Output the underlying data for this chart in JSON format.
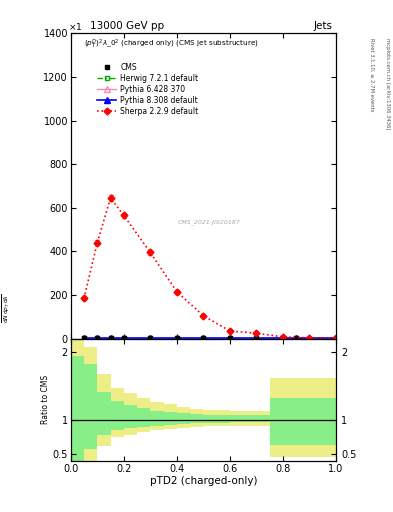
{
  "title_top": "13000 GeV pp",
  "title_right": "Jets",
  "plot_label": "$(p_T^D)^2\\lambda\\_0^2$ (charged only) (CMS jet substructure)",
  "watermark": "CMS_2021-JI920187",
  "ylabel_ratio": "Ratio to CMS",
  "xlabel": "pTD2 (charged-only)",
  "right_label_top": "Rivet 3.1.10, ≥ 2.7M events",
  "right_label_bot": "mcplots.cern.ch [arXiv:1306.3436]",
  "sherpa_x": [
    0.05,
    0.1,
    0.15,
    0.2,
    0.3,
    0.4,
    0.5,
    0.6,
    0.7,
    0.8,
    0.9,
    1.0
  ],
  "sherpa_y": [
    185,
    440,
    645,
    565,
    395,
    215,
    105,
    35,
    25,
    8,
    4,
    2
  ],
  "sherpa_ey": [
    10,
    12,
    15,
    13,
    10,
    8,
    6,
    4,
    3,
    2,
    1,
    1
  ],
  "cms_x": [
    0.05,
    0.1,
    0.15,
    0.2,
    0.3,
    0.4,
    0.5,
    0.6,
    0.7,
    0.85,
    1.0
  ],
  "cms_y": [
    2,
    2,
    2,
    2,
    2,
    2,
    2,
    2,
    2,
    2,
    2
  ],
  "herwig_x": [
    0.05,
    0.1,
    0.15,
    0.2,
    0.3,
    0.4,
    0.5,
    0.6,
    0.7,
    0.85,
    1.0
  ],
  "herwig_y": [
    2,
    2,
    2,
    2,
    2,
    2,
    2,
    2,
    2,
    2,
    2
  ],
  "pythia6_x": [
    0.05,
    0.1,
    0.15,
    0.2,
    0.3,
    0.4,
    0.5,
    0.6,
    0.7,
    0.85,
    1.0
  ],
  "pythia6_y": [
    2,
    2,
    2,
    2,
    2,
    2,
    2,
    2,
    2,
    2,
    2
  ],
  "pythia8_x": [
    0.05,
    0.1,
    0.15,
    0.2,
    0.3,
    0.4,
    0.5,
    0.6,
    0.7,
    0.85,
    1.0
  ],
  "pythia8_y": [
    2,
    2,
    2,
    2,
    2,
    2,
    2,
    2,
    2,
    2,
    2
  ],
  "ratio_bins": [
    0.0,
    0.05,
    0.1,
    0.15,
    0.2,
    0.25,
    0.3,
    0.35,
    0.4,
    0.45,
    0.5,
    0.55,
    0.6,
    0.65,
    0.7,
    0.75,
    0.8,
    0.85,
    0.9,
    0.95,
    1.0
  ],
  "ratio_green_lo": [
    0.38,
    0.58,
    0.78,
    0.86,
    0.88,
    0.9,
    0.92,
    0.93,
    0.94,
    0.95,
    0.96,
    0.96,
    0.97,
    0.97,
    0.97,
    0.64,
    0.64,
    0.64,
    0.64,
    0.64
  ],
  "ratio_green_hi": [
    1.95,
    1.82,
    1.42,
    1.28,
    1.22,
    1.18,
    1.14,
    1.12,
    1.1,
    1.09,
    1.08,
    1.08,
    1.07,
    1.07,
    1.07,
    1.33,
    1.33,
    1.33,
    1.33,
    1.33
  ],
  "ratio_yellow_lo": [
    0.18,
    0.38,
    0.62,
    0.75,
    0.78,
    0.82,
    0.85,
    0.87,
    0.89,
    0.9,
    0.91,
    0.91,
    0.92,
    0.92,
    0.92,
    0.45,
    0.45,
    0.45,
    0.45,
    0.45
  ],
  "ratio_yellow_hi": [
    2.25,
    2.08,
    1.68,
    1.48,
    1.4,
    1.33,
    1.26,
    1.23,
    1.19,
    1.17,
    1.15,
    1.15,
    1.13,
    1.13,
    1.13,
    1.62,
    1.62,
    1.62,
    1.62,
    1.62
  ],
  "ylim_main": [
    0,
    1400
  ],
  "yticks_main": [
    0,
    200,
    400,
    600,
    800,
    1000,
    1200,
    1400
  ],
  "ylim_ratio": [
    0.4,
    2.2
  ],
  "xlim": [
    0.0,
    1.0
  ],
  "color_cms": "#000000",
  "color_herwig": "#00aa00",
  "color_pythia6": "#ff88aa",
  "color_pythia8": "#0000ff",
  "color_sherpa": "#ff0000",
  "color_green_band": "#88ee88",
  "color_yellow_band": "#eeee88",
  "bg_color": "#ffffff"
}
